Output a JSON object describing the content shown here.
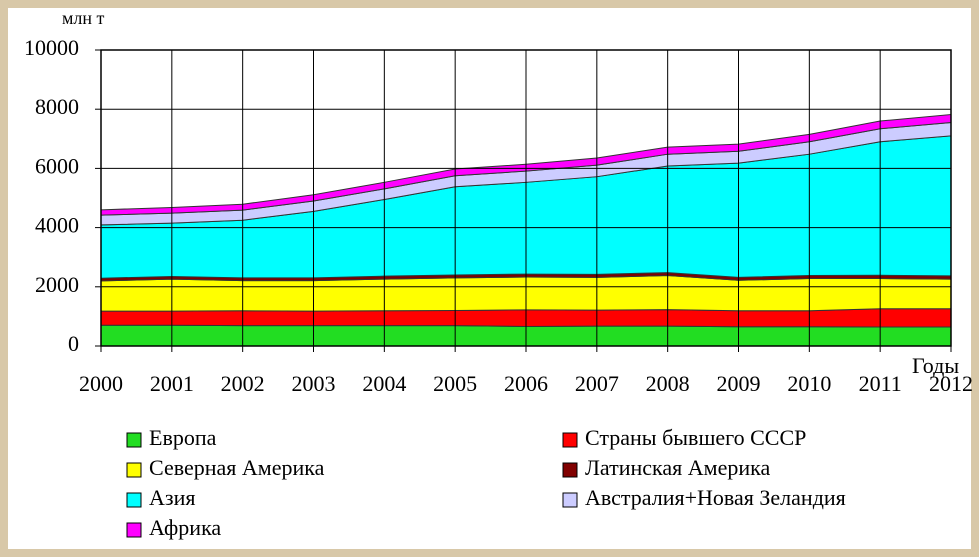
{
  "chart_data": {
    "type": "stacked_area",
    "y_axis_label": "млн т",
    "x_axis_label": "Годы",
    "categories": [
      "2000",
      "2001",
      "2002",
      "2003",
      "2004",
      "2005",
      "2006",
      "2007",
      "2008",
      "2009",
      "2010",
      "2011",
      "2012"
    ],
    "ylim": [
      0,
      10000
    ],
    "yticks": [
      0,
      2000,
      4000,
      6000,
      8000,
      10000
    ],
    "grid": true,
    "series": [
      {
        "name": "Европа",
        "color": "#22dd22",
        "values": [
          700,
          700,
          690,
          690,
          690,
          690,
          660,
          670,
          670,
          650,
          650,
          640,
          640
        ]
      },
      {
        "name": "Страны бывшего СССР",
        "color": "#ff0000",
        "values": [
          480,
          480,
          500,
          490,
          500,
          510,
          560,
          540,
          560,
          540,
          540,
          620,
          620
        ]
      },
      {
        "name": "Северная Америка",
        "color": "#ffff00",
        "values": [
          1020,
          1080,
          1020,
          1030,
          1070,
          1100,
          1110,
          1110,
          1150,
          1030,
          1090,
          1020,
          1000
        ]
      },
      {
        "name": "Латинская Америка",
        "color": "#800000",
        "values": [
          90,
          90,
          90,
          90,
          100,
          100,
          100,
          100,
          100,
          100,
          100,
          110,
          110
        ]
      },
      {
        "name": "Азия",
        "color": "#00ffff",
        "values": [
          1800,
          1800,
          1950,
          2250,
          2590,
          2980,
          3100,
          3300,
          3600,
          3860,
          4100,
          4510,
          4730
        ]
      },
      {
        "name": "Австралия+Новая Зеландия",
        "color": "#ccccff",
        "values": [
          330,
          340,
          340,
          350,
          360,
          370,
          380,
          390,
          400,
          400,
          420,
          440,
          450
        ]
      },
      {
        "name": "Африка",
        "color": "#ff00ff",
        "values": [
          180,
          190,
          200,
          210,
          220,
          230,
          230,
          240,
          240,
          240,
          250,
          260,
          270
        ]
      }
    ]
  }
}
